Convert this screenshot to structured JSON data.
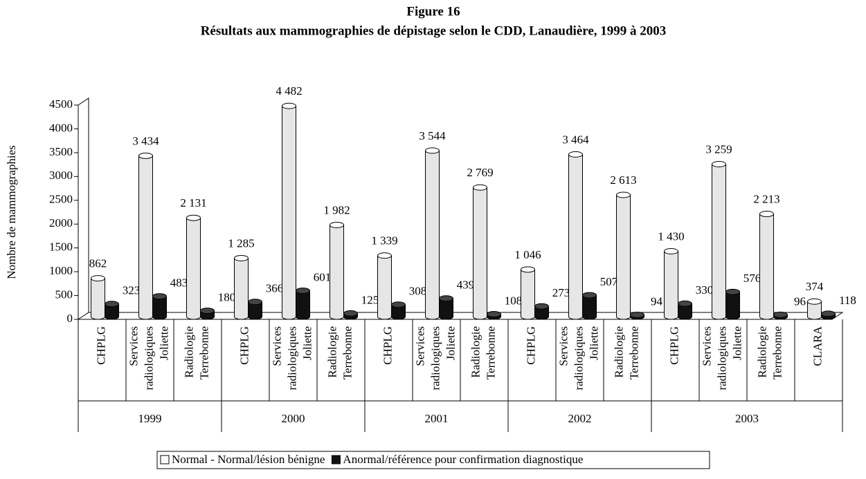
{
  "chart_data": {
    "type": "bar",
    "title": "Figure 16",
    "subtitle": "Résultats aux mammographies de dépistage selon le CDD, Lanaudière, 1999 à 2003",
    "y_label": "Nombre de mammographies",
    "categories": [
      [
        "CHPLG"
      ],
      [
        "Services",
        "radiologiques",
        "Joliette"
      ],
      [
        "Radiologie",
        "Terrebonne"
      ],
      [
        "CHPLG"
      ],
      [
        "Services",
        "radiologiques",
        "Joliette"
      ],
      [
        "Radiologie",
        "Terrebonne"
      ],
      [
        "CHPLG"
      ],
      [
        "Services",
        "radiologiques",
        "Joliette"
      ],
      [
        "Radiologie",
        "Terrebonne"
      ],
      [
        "CHPLG"
      ],
      [
        "Services",
        "radiologiques",
        "Joliette"
      ],
      [
        "Radiologie",
        "Terrebonne"
      ],
      [
        "CHPLG"
      ],
      [
        "Services",
        "radiologiques",
        "Joliette"
      ],
      [
        "Radiologie",
        "Terrebonne"
      ],
      [
        "CLARA"
      ]
    ],
    "category_groups": [
      "1999",
      "1999",
      "1999",
      "2000",
      "2000",
      "2000",
      "2001",
      "2001",
      "2001",
      "2002",
      "2002",
      "2002",
      "2003",
      "2003",
      "2003",
      "2003"
    ],
    "series": [
      {
        "name": "Normal - Normal/lésion bénigne",
        "color": "#e6e6e6",
        "values": [
          862,
          3434,
          2131,
          1285,
          4482,
          1982,
          1339,
          3544,
          2769,
          1046,
          3464,
          2613,
          1430,
          3259,
          2213,
          374
        ],
        "value_labels": [
          "862",
          "3 434",
          "2 131",
          "1 285",
          "4 482",
          "1 982",
          "1 339",
          "3 544",
          "2 769",
          "1 046",
          "3 464",
          "2 613",
          "1 430",
          "3 259",
          "2 213",
          "374"
        ]
      },
      {
        "name": "Anormal/référence pour confirmation diagnostique",
        "color": "#111111",
        "values": [
          323,
          483,
          180,
          366,
          601,
          125,
          308,
          439,
          108,
          273,
          507,
          94,
          330,
          576,
          96,
          118
        ],
        "value_labels": [
          "323",
          "483",
          "180",
          "366",
          "601",
          "125",
          "308",
          "439",
          "108",
          "273",
          "507",
          "94",
          "330",
          "576",
          "96",
          "118"
        ]
      }
    ],
    "ylim": [
      0,
      4500
    ],
    "yticks": [
      0,
      500,
      1000,
      1500,
      2000,
      2500,
      3000,
      3500,
      4000,
      4500
    ],
    "legend": "bottom"
  }
}
